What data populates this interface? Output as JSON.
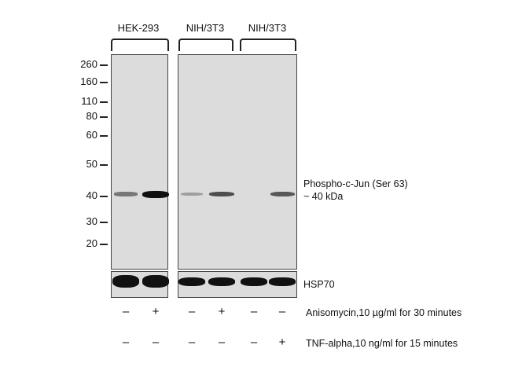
{
  "groups": [
    {
      "label": "HEK-293"
    },
    {
      "label": "NIH/3T3"
    },
    {
      "label": "NIH/3T3"
    }
  ],
  "markers": [
    "260",
    "160",
    "110",
    "80",
    "60",
    "50",
    "40",
    "30",
    "20"
  ],
  "target_label": "Phospho-c-Jun  (Ser 63)",
  "target_size": "~ 40 kDa",
  "loading_label": "HSP70",
  "band_intensity": [
    0.35,
    1.0,
    0.15,
    0.55,
    0,
    0.5
  ],
  "treatments": [
    {
      "label": "Anisomycin,10 µg/ml for 30 minutes",
      "signs": [
        "–",
        "+",
        "–",
        "+",
        "–",
        "–"
      ]
    },
    {
      "label": "TNF-alpha,10 ng/ml for 15 minutes",
      "signs": [
        "–",
        "–",
        "–",
        "–",
        "–",
        "+"
      ]
    }
  ]
}
